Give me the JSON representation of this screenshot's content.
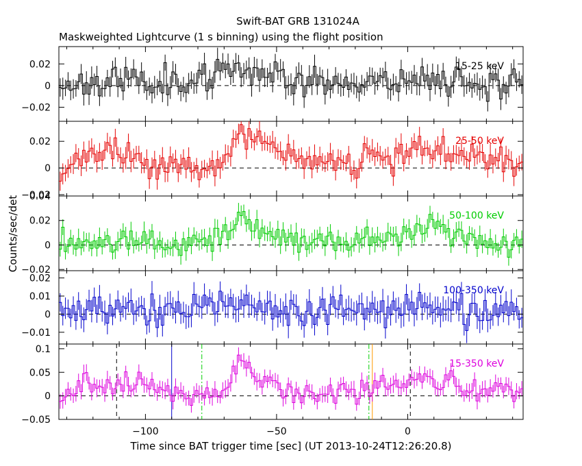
{
  "header": {
    "line1": "Swift-BAT GRB 131024A",
    "line2": "Maskweighted Lightcurve (1 s binning) using the flight position"
  },
  "axes": {
    "xlabel": "Time since BAT trigger time [sec] (UT 2013-10-24T12:26:20.8)",
    "ylabel": "Counts/sec/det"
  },
  "chart_data": [
    {
      "type": "line",
      "band": "15-25 keV",
      "color": "#000000",
      "xlim": [
        -133,
        44
      ],
      "ylim": [
        -0.033,
        0.036
      ],
      "xticks": [
        -100,
        -50,
        0
      ],
      "xtick_labels": [
        "−100",
        "−50",
        "0"
      ],
      "yticks": [
        -0.02,
        0,
        0.02
      ],
      "ytick_labels": [
        "−0.02",
        "0",
        "0.02"
      ],
      "anchors": [
        [
          -133,
          0.0
        ],
        [
          -125,
          0.003
        ],
        [
          -100,
          0.005
        ],
        [
          -85,
          0.005
        ],
        [
          -75,
          0.005
        ],
        [
          -70,
          0.01
        ],
        [
          -65,
          0.02
        ],
        [
          -60,
          0.015
        ],
        [
          -55,
          0.013
        ],
        [
          -45,
          0.008
        ],
        [
          -30,
          0.002
        ],
        [
          -10,
          0.005
        ],
        [
          10,
          0.007
        ],
        [
          30,
          0.003
        ],
        [
          44,
          0.005
        ]
      ],
      "noise": 0.007,
      "err": 0.009,
      "seed": 11
    },
    {
      "type": "line",
      "band": "25-50 keV",
      "color": "#e60000",
      "xlim": [
        -133,
        44
      ],
      "ylim": [
        -0.021,
        0.035
      ],
      "xticks": [
        -100,
        -50,
        0
      ],
      "xtick_labels": [
        "−100",
        "−50",
        "0"
      ],
      "yticks": [
        -0.02,
        0,
        0.02
      ],
      "ytick_labels": [
        "−0.02",
        "0",
        "0.02"
      ],
      "anchors": [
        [
          -133,
          -0.005
        ],
        [
          -125,
          0.005
        ],
        [
          -115,
          0.012
        ],
        [
          -100,
          0.005
        ],
        [
          -85,
          0.002
        ],
        [
          -72,
          -0.003
        ],
        [
          -66,
          0.018
        ],
        [
          -62,
          0.024
        ],
        [
          -55,
          0.02
        ],
        [
          -48,
          0.008
        ],
        [
          -35,
          0.005
        ],
        [
          -20,
          0.004
        ],
        [
          -15,
          0.015
        ],
        [
          -5,
          0.006
        ],
        [
          10,
          0.015
        ],
        [
          20,
          0.01
        ],
        [
          35,
          0.005
        ],
        [
          44,
          0.002
        ]
      ],
      "noise": 0.005,
      "err": 0.007,
      "seed": 23
    },
    {
      "type": "line",
      "band": "50-100 keV",
      "color": "#00cc00",
      "xlim": [
        -133,
        44
      ],
      "ylim": [
        -0.021,
        0.04
      ],
      "xticks": [
        -100,
        -50,
        0
      ],
      "xtick_labels": [
        "−100",
        "−50",
        "0"
      ],
      "yticks": [
        -0.02,
        0,
        0.02,
        0.04
      ],
      "ytick_labels": [
        "−0.02",
        "0",
        "0.02",
        "0.04"
      ],
      "anchors": [
        [
          -133,
          0.002
        ],
        [
          -110,
          0.005
        ],
        [
          -100,
          0.006
        ],
        [
          -92,
          0.0
        ],
        [
          -75,
          0.003
        ],
        [
          -68,
          0.01
        ],
        [
          -64,
          0.03
        ],
        [
          -60,
          0.02
        ],
        [
          -55,
          0.01
        ],
        [
          -48,
          0.002
        ],
        [
          -30,
          0.003
        ],
        [
          -10,
          0.005
        ],
        [
          5,
          0.012
        ],
        [
          10,
          0.018
        ],
        [
          20,
          0.005
        ],
        [
          35,
          0.0
        ],
        [
          44,
          0.0
        ]
      ],
      "noise": 0.005,
      "err": 0.007,
      "seed": 37
    },
    {
      "type": "line",
      "band": "100-350 keV",
      "color": "#0000cc",
      "xlim": [
        -133,
        44
      ],
      "ylim": [
        -0.0165,
        0.024
      ],
      "xticks": [
        -100,
        -50,
        0
      ],
      "xtick_labels": [
        "−100",
        "−50",
        "0"
      ],
      "yticks": [
        -0.01,
        0,
        0.01,
        0.02
      ],
      "ytick_labels": [
        "−0.01",
        "0",
        "0.01",
        "0.02"
      ],
      "anchors": [
        [
          -133,
          0.0
        ],
        [
          -110,
          0.005
        ],
        [
          -95,
          0.002
        ],
        [
          -80,
          0.003
        ],
        [
          -60,
          0.005
        ],
        [
          -40,
          0.0
        ],
        [
          -20,
          0.002
        ],
        [
          0,
          0.005
        ],
        [
          10,
          0.003
        ],
        [
          30,
          0.002
        ],
        [
          44,
          0.002
        ]
      ],
      "noise": 0.0045,
      "err": 0.006,
      "seed": 53
    },
    {
      "type": "line",
      "band": "15-350 keV",
      "color": "#dd00dd",
      "xlim": [
        -133,
        44
      ],
      "ylim": [
        -0.05,
        0.11
      ],
      "xticks": [
        -100,
        -50,
        0
      ],
      "xtick_labels": [
        "−100",
        "−50",
        "0"
      ],
      "yticks": [
        -0.05,
        0,
        0.05,
        0.1
      ],
      "ytick_labels": [
        "−0.05",
        "0",
        "0.05",
        "0.1"
      ],
      "anchors": [
        [
          -133,
          -0.01
        ],
        [
          -125,
          0.02
        ],
        [
          -112,
          0.03
        ],
        [
          -100,
          0.02
        ],
        [
          -85,
          0.005
        ],
        [
          -72,
          0.0
        ],
        [
          -66,
          0.06
        ],
        [
          -63,
          0.08
        ],
        [
          -58,
          0.045
        ],
        [
          -52,
          0.03
        ],
        [
          -45,
          0.005
        ],
        [
          -30,
          0.005
        ],
        [
          -15,
          0.015
        ],
        [
          -10,
          0.03
        ],
        [
          -3,
          0.01
        ],
        [
          5,
          0.04
        ],
        [
          12,
          0.03
        ],
        [
          25,
          0.01
        ],
        [
          40,
          0.015
        ],
        [
          44,
          0.02
        ]
      ],
      "noise": 0.012,
      "err": 0.016,
      "seed": 71,
      "markers": [
        {
          "x": -111,
          "color": "#000000",
          "style": "dash"
        },
        {
          "x": -90,
          "color": "#0000cc",
          "style": "solid"
        },
        {
          "x": -78.5,
          "color": "#00cc00",
          "style": "dashdot"
        },
        {
          "x": -14.8,
          "color": "#00cc00",
          "style": "dashdot"
        },
        {
          "x": -13.5,
          "color": "#ff9900",
          "style": "solid"
        },
        {
          "x": 1,
          "color": "#000000",
          "style": "dash"
        }
      ]
    }
  ]
}
